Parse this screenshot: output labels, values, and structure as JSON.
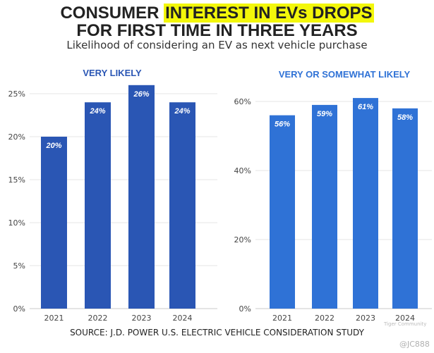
{
  "header": {
    "title_line1_pre": "CONSUMER ",
    "title_line1_highlight": "INTEREST IN EVs DROPS",
    "title_line2": "FOR FIRST TIME IN THREE YEARS",
    "subtitle": "Likelihood of considering an EV as next vehicle purchase"
  },
  "footer": {
    "source": "SOURCE: J.D. POWER U.S. ELECTRIC VEHICLE CONSIDERATION STUDY",
    "watermark_small": "Tiger Community",
    "watermark_handle": "@JC888"
  },
  "colors": {
    "bar_left": "#2a56b4",
    "bar_right": "#2f72d6",
    "title_left": "#2a56b4",
    "title_right": "#2f72d6",
    "highlight": "#f3f70a"
  },
  "chart_data": [
    {
      "type": "bar",
      "title": "VERY LIKELY",
      "categories": [
        "2021",
        "2022",
        "2023",
        "2024"
      ],
      "values": [
        20,
        24,
        26,
        24
      ],
      "data_labels": [
        "20%",
        "24%",
        "26%",
        "24%"
      ],
      "ylim": [
        0,
        25
      ],
      "yticks": [
        0,
        5,
        10,
        15,
        20,
        25
      ],
      "ytick_labels": [
        "0%",
        "5%",
        "10%",
        "15%",
        "20%",
        "25%"
      ],
      "xlabel": "",
      "ylabel": ""
    },
    {
      "type": "bar",
      "title": "VERY OR SOMEWHAT LIKELY",
      "categories": [
        "2021",
        "2022",
        "2023",
        "2024"
      ],
      "values": [
        56,
        59,
        61,
        58
      ],
      "data_labels": [
        "56%",
        "59%",
        "61%",
        "58%"
      ],
      "ylim": [
        0,
        60
      ],
      "yticks": [
        0,
        20,
        40,
        60
      ],
      "ytick_labels": [
        "0%",
        "20%",
        "40%",
        "60%"
      ],
      "xlabel": "",
      "ylabel": ""
    }
  ]
}
